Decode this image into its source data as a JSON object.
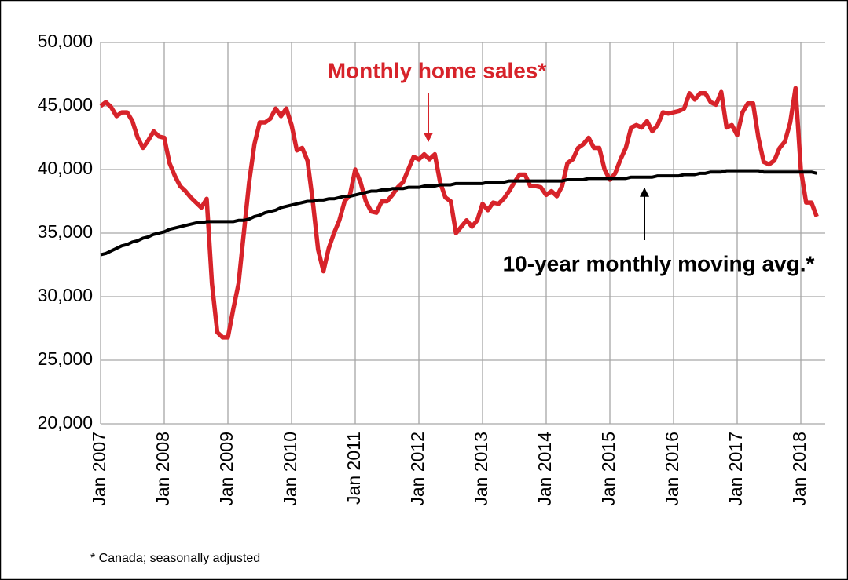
{
  "chart_data": {
    "type": "line",
    "categories": [
      "Jan 2007",
      null,
      null,
      null,
      null,
      null,
      null,
      null,
      null,
      null,
      null,
      null,
      "Jan 2008",
      null,
      null,
      null,
      null,
      null,
      null,
      null,
      null,
      null,
      null,
      null,
      "Jan 2009",
      null,
      null,
      null,
      null,
      null,
      null,
      null,
      null,
      null,
      null,
      null,
      "Jan 2010",
      null,
      null,
      null,
      null,
      null,
      null,
      null,
      null,
      null,
      null,
      null,
      "Jan 2011",
      null,
      null,
      null,
      null,
      null,
      null,
      null,
      null,
      null,
      null,
      null,
      "Jan 2012",
      null,
      null,
      null,
      null,
      null,
      null,
      null,
      null,
      null,
      null,
      null,
      "Jan 2013",
      null,
      null,
      null,
      null,
      null,
      null,
      null,
      null,
      null,
      null,
      null,
      "Jan 2014",
      null,
      null,
      null,
      null,
      null,
      null,
      null,
      null,
      null,
      null,
      null,
      "Jan 2015",
      null,
      null,
      null,
      null,
      null,
      null,
      null,
      null,
      null,
      null,
      null,
      "Jan 2016",
      null,
      null,
      null,
      null,
      null,
      null,
      null,
      null,
      null,
      null,
      null,
      "Jan 2017",
      null,
      null,
      null,
      null,
      null,
      null,
      null,
      null,
      null,
      null,
      null,
      "Jan 2018",
      null,
      null,
      null
    ],
    "series": [
      {
        "name": "Monthly home sales*",
        "color": "#d7232a",
        "values": [
          45000,
          45300,
          44900,
          44200,
          44500,
          44500,
          43800,
          42500,
          41700,
          42300,
          43000,
          42600,
          42500,
          40500,
          39500,
          38700,
          38300,
          37800,
          37400,
          37000,
          37700,
          31000,
          27200,
          26800,
          26800,
          29000,
          31000,
          35000,
          39000,
          42000,
          43700,
          43700,
          44000,
          44800,
          44200,
          44800,
          43500,
          41500,
          41700,
          40700,
          37500,
          33700,
          32000,
          33800,
          35000,
          36000,
          37500,
          38000,
          40000,
          39000,
          37500,
          36700,
          36600,
          37500,
          37500,
          38000,
          38600,
          39000,
          40000,
          41000,
          40800,
          41200,
          40800,
          41200,
          39000,
          37800,
          37500,
          35000,
          35500,
          36000,
          35500,
          36000,
          37300,
          36800,
          37400,
          37300,
          37700,
          38300,
          39000,
          39600,
          39600,
          38700,
          38700,
          38600,
          38000,
          38300,
          37900,
          38700,
          40500,
          40800,
          41700,
          42000,
          42500,
          41700,
          41700,
          40000,
          39200,
          39700,
          40800,
          41700,
          43300,
          43500,
          43300,
          43800,
          43000,
          43500,
          44500,
          44400,
          44500,
          44600,
          44800,
          46000,
          45500,
          46000,
          46000,
          45300,
          45100,
          46100,
          43300,
          43500,
          42700,
          44500,
          45200,
          45200,
          42500,
          40600,
          40400,
          40700,
          41700,
          42200,
          43700,
          46400,
          40000,
          37400,
          37400,
          36300
        ]
      },
      {
        "name": "10-year monthly moving avg.*",
        "color": "#000000",
        "values": [
          33300,
          33400,
          33600,
          33800,
          34000,
          34100,
          34300,
          34400,
          34600,
          34700,
          34900,
          35000,
          35100,
          35300,
          35400,
          35500,
          35600,
          35700,
          35800,
          35800,
          35900,
          35900,
          35900,
          35900,
          35900,
          35900,
          36000,
          36000,
          36100,
          36300,
          36400,
          36600,
          36700,
          36800,
          37000,
          37100,
          37200,
          37300,
          37400,
          37500,
          37500,
          37600,
          37600,
          37700,
          37700,
          37800,
          37900,
          37900,
          38000,
          38100,
          38200,
          38300,
          38300,
          38400,
          38400,
          38500,
          38500,
          38500,
          38600,
          38600,
          38600,
          38700,
          38700,
          38700,
          38800,
          38800,
          38800,
          38900,
          38900,
          38900,
          38900,
          38900,
          38900,
          39000,
          39000,
          39000,
          39000,
          39100,
          39100,
          39100,
          39100,
          39100,
          39100,
          39100,
          39100,
          39100,
          39100,
          39100,
          39200,
          39200,
          39200,
          39200,
          39300,
          39300,
          39300,
          39300,
          39300,
          39300,
          39300,
          39300,
          39400,
          39400,
          39400,
          39400,
          39400,
          39500,
          39500,
          39500,
          39500,
          39500,
          39600,
          39600,
          39600,
          39700,
          39700,
          39800,
          39800,
          39800,
          39900,
          39900,
          39900,
          39900,
          39900,
          39900,
          39900,
          39800,
          39800,
          39800,
          39800,
          39800,
          39800,
          39800,
          39800,
          39800,
          39800,
          39700
        ]
      }
    ],
    "ylim": [
      20000,
      50000
    ],
    "yticks": [
      {
        "value": 20000,
        "label": "20,000"
      },
      {
        "value": 25000,
        "label": "25,000"
      },
      {
        "value": 30000,
        "label": "30,000"
      },
      {
        "value": 35000,
        "label": "35,000"
      },
      {
        "value": 40000,
        "label": "40,000"
      },
      {
        "value": 45000,
        "label": "45,000"
      },
      {
        "value": 50000,
        "label": "50,000"
      }
    ],
    "grid": true,
    "footnote": "* Canada; seasonally adjusted"
  }
}
